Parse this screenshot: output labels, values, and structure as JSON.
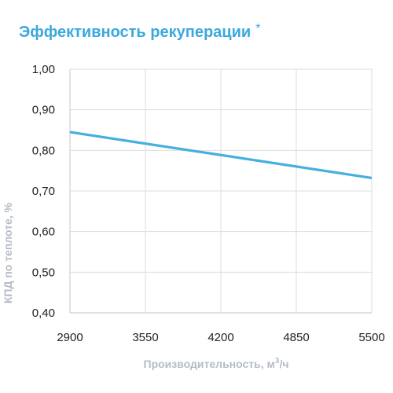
{
  "chart_data": {
    "type": "line",
    "title": "Эффективность рекуперации",
    "title_mark": "*",
    "xlabel": "Производительность, м",
    "xlabel_sup": "3",
    "xlabel_tail": "/ч",
    "ylabel": "КПД по теплоте, %",
    "x_ticks": [
      "2900",
      "3550",
      "4200",
      "4850",
      "5500"
    ],
    "y_ticks": [
      "0,40",
      "0,50",
      "0,60",
      "0,70",
      "0,80",
      "0,90",
      "1,00"
    ],
    "xlim": [
      2900,
      5500
    ],
    "ylim": [
      0.4,
      1.0
    ],
    "grid": true,
    "series": [
      {
        "color": "#47aee0",
        "x": [
          2900,
          5500
        ],
        "y": [
          0.845,
          0.732
        ]
      }
    ]
  }
}
